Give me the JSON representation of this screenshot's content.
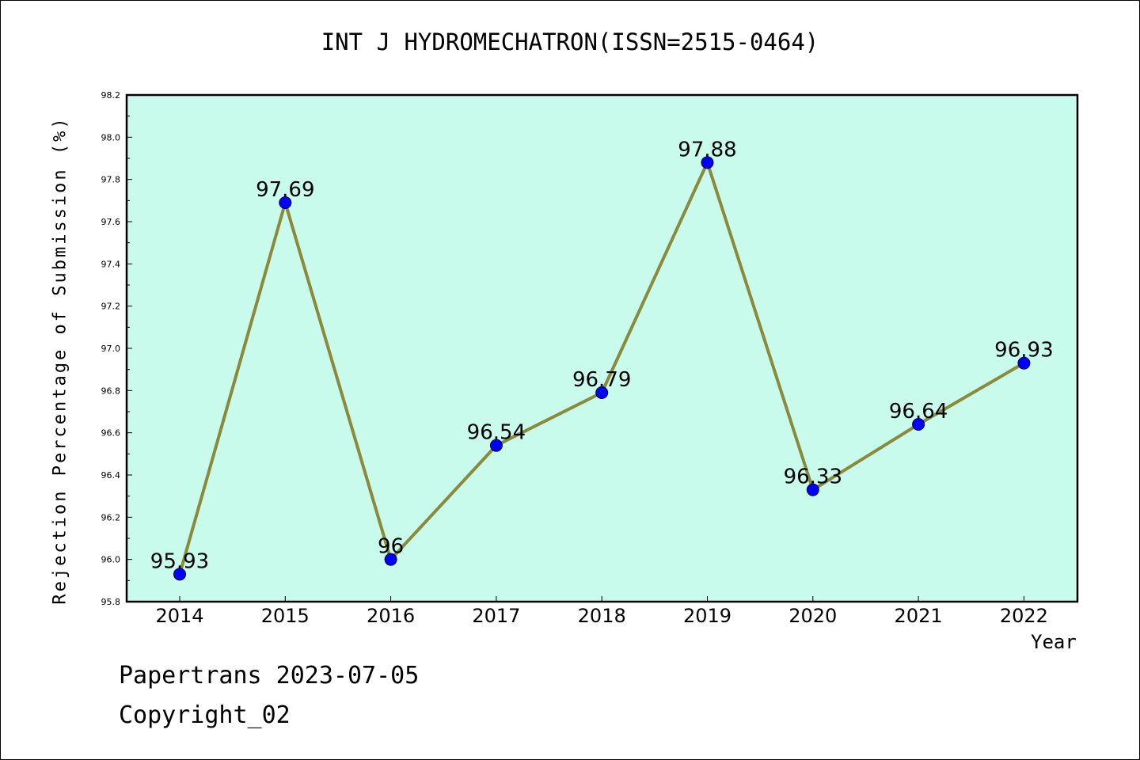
{
  "chart_data": {
    "type": "line",
    "title": "INT J HYDROMECHATRON(ISSN=2515-0464)",
    "xlabel": "Year",
    "ylabel": "Rejection Percentage of Submission (%)",
    "categories": [
      "2014",
      "2015",
      "2016",
      "2017",
      "2018",
      "2019",
      "2020",
      "2021",
      "2022"
    ],
    "values": [
      95.93,
      97.69,
      96,
      96.54,
      96.79,
      97.88,
      96.33,
      96.64,
      96.93
    ],
    "data_labels": [
      "95.93",
      "97.69",
      "96",
      "96.54",
      "96.79",
      "97.88",
      "96.33",
      "96.64",
      "96.93"
    ],
    "ylim": [
      95.8,
      98.2
    ],
    "yticks": [
      "95.8",
      "96.0",
      "96.2",
      "96.4",
      "96.6",
      "96.8",
      "97.0",
      "97.2",
      "97.4",
      "97.6",
      "97.8",
      "98.0",
      "98.2"
    ],
    "grid": false,
    "colors": {
      "plot_background": "#c8fbec",
      "line": "#8b8a3a",
      "marker": "#0000ff"
    }
  },
  "footer": {
    "line1": "Papertrans 2023-07-05",
    "line2": "Copyright_02"
  }
}
